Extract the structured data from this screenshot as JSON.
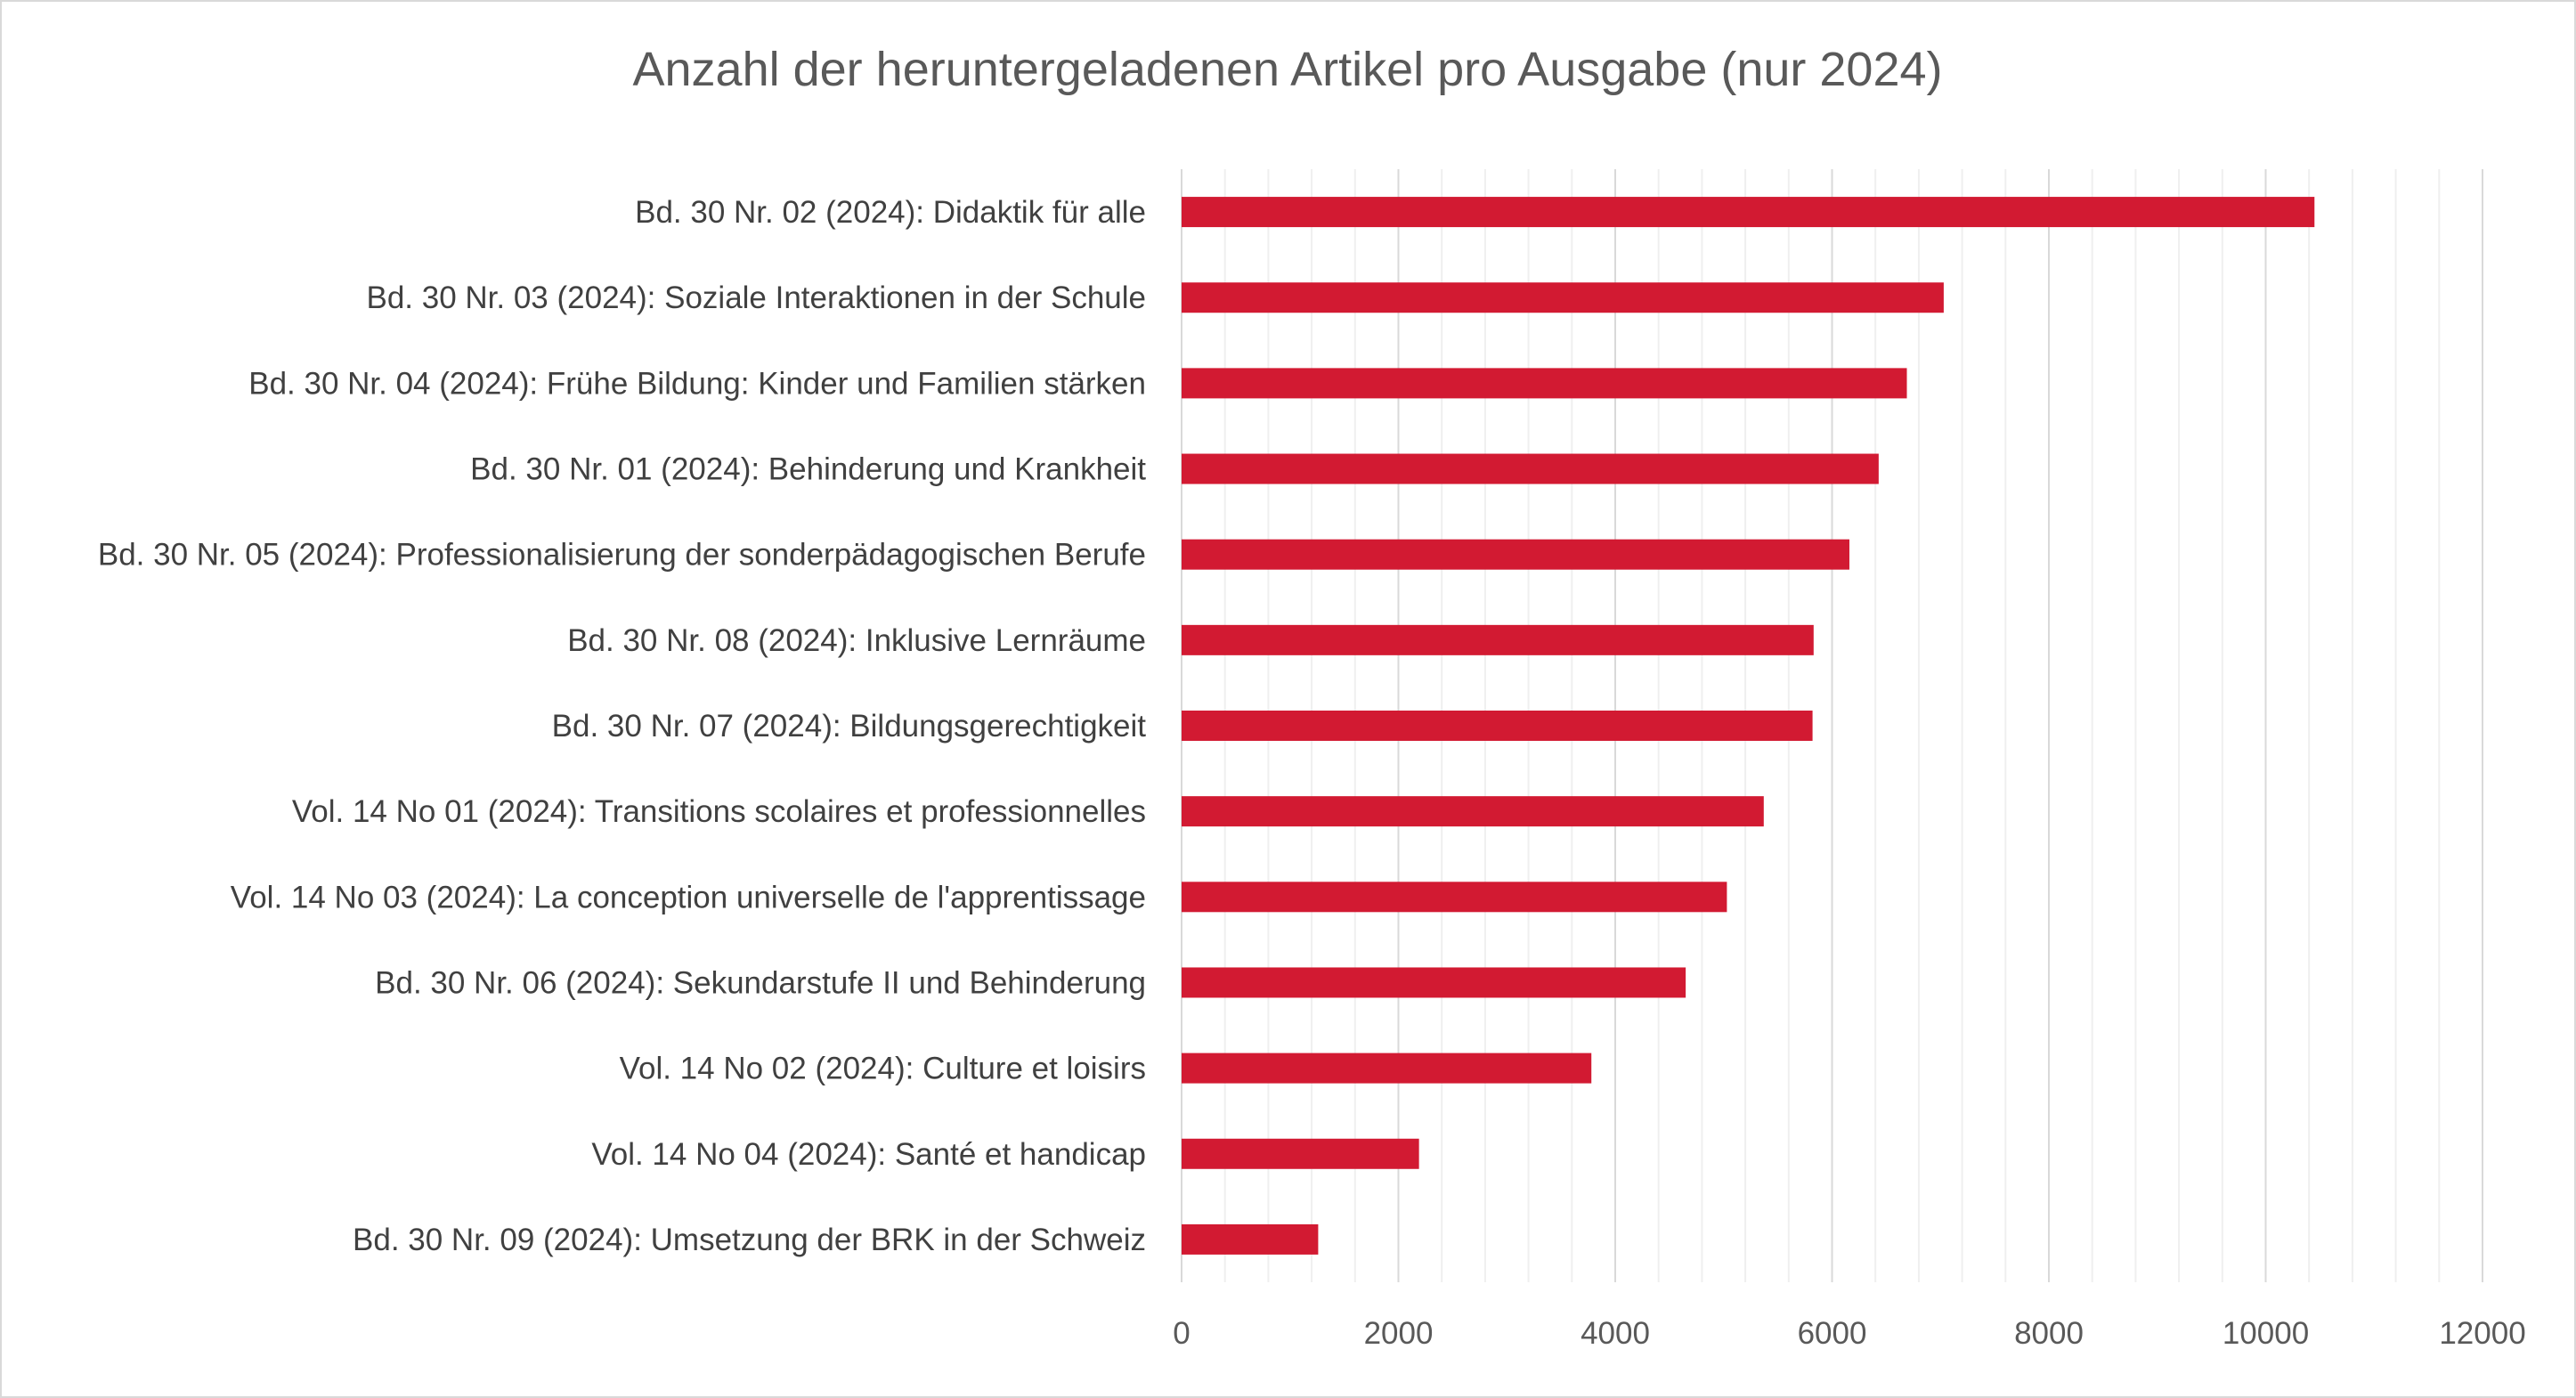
{
  "chart_data": {
    "type": "bar",
    "orientation": "horizontal",
    "title": "Anzahl der heruntergeladenen Artikel pro Ausgabe (nur 2024)",
    "xlabel": "",
    "ylabel": "",
    "categories": [
      "Bd. 30 Nr. 02 (2024): Didaktik für alle",
      "Bd. 30 Nr. 03 (2024): Soziale Interaktionen in der Schule",
      "Bd. 30 Nr. 04 (2024): Frühe Bildung: Kinder und Familien stärken",
      "Bd. 30 Nr. 01 (2024): Behinderung und Krankheit",
      "Bd. 30 Nr. 05 (2024): Professionalisierung der sonderpädagogischen Berufe",
      "Bd. 30 Nr. 08 (2024): Inklusive Lernräume",
      "Bd. 30 Nr. 07 (2024): Bildungsgerechtigkeit",
      "Vol. 14 No 01 (2024): Transitions scolaires et professionnelles",
      "Vol. 14 No 03 (2024): La conception universelle de l'apprentissage",
      "Bd. 30 Nr. 06 (2024): Sekundarstufe II und Behinderung",
      "Vol. 14 No 02 (2024): Culture et loisirs",
      "Vol. 14 No 04 (2024): Santé et handicap",
      "Bd. 30 Nr. 09 (2024): Umsetzung der BRK in der Schweiz"
    ],
    "values": [
      10450,
      7030,
      6690,
      6430,
      6160,
      5830,
      5820,
      5370,
      5030,
      4650,
      3780,
      2190,
      1260
    ],
    "xlim": [
      0,
      12000
    ],
    "xticks": [
      0,
      2000,
      4000,
      6000,
      8000,
      10000,
      12000
    ],
    "xtick_labels": [
      "0",
      "2000",
      "4000",
      "6000",
      "8000",
      "10000",
      "12000"
    ],
    "grid": "vertical major and minor gridlines",
    "legend": "none",
    "bar_color": "#d21a32",
    "major_grid_color": "#d9d9d9",
    "minor_grid_color": "#efefef"
  }
}
